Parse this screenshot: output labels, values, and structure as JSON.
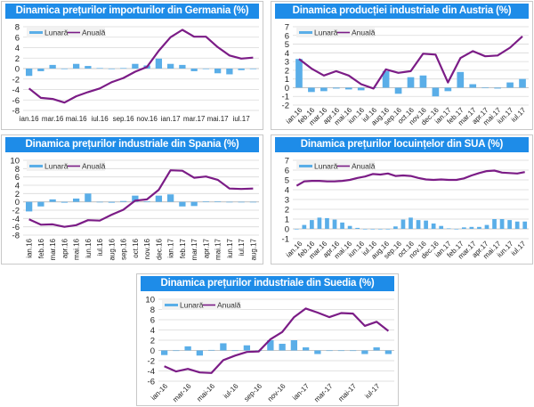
{
  "colors": {
    "title_bg": "#1e8ce8",
    "monthly": "#5aaee8",
    "annual": "#7b1c86",
    "grid": "#d9d9d9"
  },
  "chart_data": [
    {
      "id": "germany",
      "type": "bar+line",
      "title": "Dinamica prețurilor importurilor din Germania (%)",
      "legend": [
        "Lunară",
        "Anuală"
      ],
      "legend_position": "top-left",
      "ylim": [
        -8,
        8
      ],
      "yticks": [
        -8,
        -6,
        -4,
        -2,
        0,
        2,
        4,
        6,
        8
      ],
      "x_label_rotation": 0,
      "x_ticks": [
        "ian.16",
        "mar.16",
        "mai.16",
        "iul.16",
        "sep.16",
        "nov.16",
        "ian.17",
        "mar.17",
        "mai.17",
        "iul.17"
      ],
      "x_tick_every": 2,
      "series": [
        {
          "name": "Lunară",
          "kind": "bar",
          "values": [
            -1.4,
            -0.5,
            0.7,
            -0.1,
            0.9,
            0.5,
            0.1,
            -0.1,
            0.1,
            0.9,
            0.6,
            1.9,
            0.9,
            0.7,
            -0.5,
            -0.1,
            -0.9,
            -1.1,
            -0.3,
            0
          ]
        },
        {
          "name": "Anuală",
          "kind": "line",
          "values": [
            -3.8,
            -5.6,
            -5.8,
            -6.5,
            -5.3,
            -4.5,
            -3.8,
            -2.6,
            -1.8,
            -0.6,
            0.3,
            3.4,
            6.0,
            7.4,
            6.1,
            6.1,
            4.1,
            2.5,
            1.9,
            2.1
          ]
        }
      ]
    },
    {
      "id": "austria",
      "type": "bar+line",
      "title": "Dinamica producției industriale din Austria (%)",
      "legend": [
        "Lunară",
        "Anuală"
      ],
      "legend_position": "top-left",
      "ylim": [
        -2,
        7
      ],
      "yticks": [
        -2,
        -1,
        0,
        1,
        2,
        3,
        4,
        5,
        6,
        7
      ],
      "x_label_rotation": -45,
      "x_ticks": [
        "ian.16",
        "feb.16",
        "mar.16",
        "apr.16",
        "mai.16",
        "iun.16",
        "iul.16",
        "aug.16",
        "sep.16",
        "oct.16",
        "nov.16",
        "dec.16",
        "ian.17",
        "feb.17",
        "mar.17",
        "apr.17",
        "mai.17",
        "iun.17",
        "iul.17"
      ],
      "x_tick_every": 1,
      "series": [
        {
          "name": "Lunară",
          "kind": "bar",
          "values": [
            3.3,
            -0.5,
            -0.4,
            -0.1,
            -0.2,
            -0.3,
            0,
            1.9,
            -0.7,
            1.2,
            1.4,
            -1.0,
            -0.4,
            1.8,
            0.4,
            0,
            -0.1,
            0.6,
            1.0
          ]
        },
        {
          "name": "Anuală",
          "kind": "line",
          "values": [
            3.3,
            2.2,
            1.4,
            1.9,
            1.4,
            0.4,
            -0.1,
            2.1,
            1.7,
            1.9,
            3.9,
            3.8,
            0.6,
            3.4,
            4.2,
            3.6,
            3.7,
            4.6,
            5.9
          ]
        }
      ]
    },
    {
      "id": "spain",
      "type": "bar+line",
      "title": "Dinamica prețurilor industriale din Spania (%)",
      "legend": [
        "Lunară",
        "Anuală"
      ],
      "legend_position": "top-left",
      "ylim": [
        -8,
        10
      ],
      "yticks": [
        -8,
        -6,
        -4,
        -2,
        0,
        2,
        4,
        6,
        8,
        10
      ],
      "x_label_rotation": -90,
      "x_ticks": [
        "ian.16",
        "feb.16",
        "mar.16",
        "apr.16",
        "mai.16",
        "iun.16",
        "iul.16",
        "aug.16",
        "sep.16",
        "oct.16",
        "nov.16",
        "dec.16",
        "ian.17",
        "feb.17",
        "mar.17",
        "apr.17",
        "mai.17",
        "iun.17",
        "iul.17",
        "aug.17"
      ],
      "x_tick_every": 1,
      "series": [
        {
          "name": "Lunară",
          "kind": "bar",
          "values": [
            -2.3,
            -1.1,
            0.6,
            -0.2,
            0.8,
            2.0,
            0,
            -0.2,
            0.2,
            1.5,
            0.1,
            1.5,
            1.8,
            -1.1,
            -1.0,
            0.1,
            0.1,
            0,
            -0.1,
            0
          ]
        },
        {
          "name": "Anuală",
          "kind": "line",
          "values": [
            -4.2,
            -5.5,
            -5.4,
            -6.0,
            -5.6,
            -4.4,
            -4.5,
            -3.1,
            -1.9,
            0.3,
            0.6,
            2.9,
            7.6,
            7.5,
            5.8,
            6.1,
            5.3,
            3.2,
            3.1,
            3.2
          ]
        }
      ]
    },
    {
      "id": "usa",
      "type": "bar+line",
      "title": "Dinamica prețurilor locuințelor din SUA (%)",
      "legend": [
        "Lunară",
        "Anuală"
      ],
      "legend_position": "top-left",
      "ylim": [
        -1,
        7
      ],
      "yticks": [
        -1,
        0,
        1,
        2,
        3,
        4,
        5,
        6,
        7
      ],
      "x_label_rotation": -45,
      "x_ticks": [
        "ian.16",
        "feb.16",
        "mar.16",
        "apr.16",
        "mai.16",
        "iun.16",
        "iul.16",
        "aug.16",
        "sep.16",
        "oct.16",
        "nov.16",
        "dec.16",
        "ian.17",
        "feb.17",
        "mar.17",
        "apr.17",
        "mai.17",
        "iun.17",
        "iul.17"
      ],
      "x_tick_every": 0,
      "series": [
        {
          "name": "Lunară",
          "kind": "bar",
          "values": [
            0,
            0.4,
            0.9,
            1.15,
            1.1,
            0.95,
            0.65,
            0.3,
            0.1,
            0,
            0,
            0,
            0,
            0.25,
            0.95,
            1.15,
            0.9,
            0.85,
            0.55,
            0.3,
            0.05,
            0,
            0.15,
            0.2,
            0.2,
            0.4,
            1.0,
            1.0,
            0.9,
            0.75,
            0.75
          ]
        },
        {
          "name": "Anuală",
          "kind": "line",
          "values": [
            4.4,
            4.85,
            4.9,
            4.9,
            4.85,
            4.85,
            4.9,
            5.0,
            5.2,
            5.35,
            5.6,
            5.55,
            5.65,
            5.4,
            5.45,
            5.4,
            5.2,
            5.05,
            5.0,
            5.05,
            5.0,
            5.0,
            5.15,
            5.45,
            5.7,
            5.9,
            5.95,
            5.75,
            5.7,
            5.65,
            5.8
          ]
        }
      ]
    },
    {
      "id": "sweden",
      "type": "bar+line",
      "title": "Dinamica prețurilor industriale din Suedia (%)",
      "legend": [
        "Lunară",
        "Anuală"
      ],
      "legend_position": "top-left",
      "ylim": [
        -6,
        10
      ],
      "yticks": [
        -6,
        -4,
        -2,
        0,
        2,
        4,
        6,
        8,
        10
      ],
      "x_label_rotation": -45,
      "x_ticks": [
        "ian-16",
        "mar-16",
        "mai-16",
        "iul-16",
        "sep-16",
        "nov-16",
        "ian-17",
        "mar-17",
        "mai-17",
        "iul-17"
      ],
      "x_tick_every": 2,
      "series": [
        {
          "name": "Lunară",
          "kind": "bar",
          "values": [
            -0.9,
            0,
            0.8,
            -1.0,
            0.1,
            1.4,
            -0.1,
            1.0,
            0,
            2.0,
            1.3,
            2.0,
            0.6,
            -0.7,
            0,
            -0.1,
            0,
            -0.7,
            0.6,
            -0.7
          ]
        },
        {
          "name": "Anuală",
          "kind": "line",
          "values": [
            -3.1,
            -4.1,
            -3.6,
            -4.3,
            -4.4,
            -1.9,
            -1.0,
            -0.3,
            -0.2,
            2.2,
            3.6,
            6.5,
            8.2,
            7.4,
            6.5,
            7.3,
            7.2,
            4.8,
            5.6,
            3.8
          ]
        }
      ]
    }
  ]
}
